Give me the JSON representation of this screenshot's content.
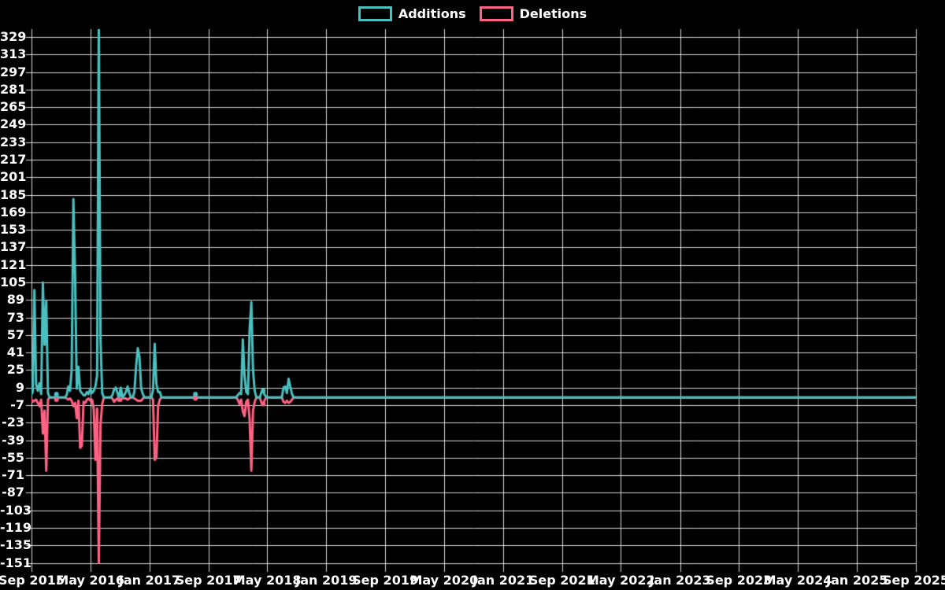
{
  "background_color": "#000000",
  "legend": {
    "items": [
      {
        "label": "Additions",
        "color": "#4bc0c0"
      },
      {
        "label": "Deletions",
        "color": "#ff6384"
      }
    ]
  },
  "chart_data": {
    "type": "line",
    "title": "",
    "xlabel": "",
    "ylabel": "",
    "grid": true,
    "legend_position": "top",
    "x_axis": {
      "tick_labels": [
        "Sep 2015",
        "May 2016",
        "Jan 2017",
        "Sep 2017",
        "May 2018",
        "Jan 2019",
        "Sep 2019",
        "May 2020",
        "Jan 2021",
        "Sep 2021",
        "May 2022",
        "Jan 2023",
        "Sep 2023",
        "May 2024",
        "Jan 2025",
        "Sep 2025"
      ]
    },
    "y_axis": {
      "min": -151,
      "max": 329,
      "tick_step": 16,
      "tick_labels": [
        "329",
        "313",
        "297",
        "281",
        "265",
        "249",
        "233",
        "217",
        "201",
        "185",
        "169",
        "153",
        "137",
        "121",
        "105",
        "89",
        "73",
        "57",
        "41",
        "25",
        "9",
        "-7",
        "-23",
        "-39",
        "-55",
        "-71",
        "-87",
        "-103",
        "-119",
        "-135",
        "-151"
      ]
    },
    "series": [
      {
        "name": "Additions",
        "color": "#4bc0c0"
      },
      {
        "name": "Deletions",
        "color": "#ff6384"
      }
    ],
    "weeks_start": "2015-08-30",
    "weeks_end": "2025-08-31",
    "default_value": 0,
    "weekly_points_format": [
      "week_date",
      "additions",
      "deletions"
    ],
    "weekly_points": [
      [
        "2015-08-30",
        2,
        -1
      ],
      [
        "2015-09-06",
        5,
        -4
      ],
      [
        "2015-09-13",
        98,
        -3
      ],
      [
        "2015-09-20",
        12,
        -2
      ],
      [
        "2015-09-27",
        6,
        -5
      ],
      [
        "2015-10-04",
        13,
        -8
      ],
      [
        "2015-10-11",
        3,
        -2
      ],
      [
        "2015-10-18",
        105,
        -33
      ],
      [
        "2015-10-25",
        48,
        -12
      ],
      [
        "2015-11-01",
        88,
        -67
      ],
      [
        "2015-11-08",
        4,
        -2
      ],
      [
        "2015-12-13",
        3,
        -2
      ],
      [
        "2016-01-24",
        2,
        -1
      ],
      [
        "2016-01-31",
        10,
        -2
      ],
      [
        "2016-02-07",
        6,
        -1
      ],
      [
        "2016-02-14",
        25,
        -3
      ],
      [
        "2016-02-21",
        181,
        -8
      ],
      [
        "2016-02-28",
        112,
        -5
      ],
      [
        "2016-03-06",
        8,
        -19
      ],
      [
        "2016-03-13",
        28,
        -3
      ],
      [
        "2016-03-20",
        6,
        -46
      ],
      [
        "2016-03-27",
        4,
        -44
      ],
      [
        "2016-04-03",
        2,
        -4
      ],
      [
        "2016-04-10",
        2,
        -5
      ],
      [
        "2016-04-17",
        5,
        -2
      ],
      [
        "2016-04-24",
        3,
        -1
      ],
      [
        "2016-05-01",
        8,
        -3
      ],
      [
        "2016-05-08",
        4,
        -2
      ],
      [
        "2016-05-15",
        6,
        -10
      ],
      [
        "2016-05-22",
        10,
        -57
      ],
      [
        "2016-05-29",
        20,
        -10
      ],
      [
        "2016-06-05",
        345,
        -151
      ],
      [
        "2016-06-12",
        53,
        -25
      ],
      [
        "2016-06-19",
        4,
        -6
      ],
      [
        "2016-07-31",
        2,
        -1
      ],
      [
        "2016-08-07",
        7,
        -4
      ],
      [
        "2016-08-14",
        9,
        -2
      ],
      [
        "2016-08-21",
        4,
        -1
      ],
      [
        "2016-08-28",
        2,
        -2
      ],
      [
        "2016-09-04",
        9,
        -3
      ],
      [
        "2016-09-18",
        2,
        -1
      ],
      [
        "2016-09-25",
        5,
        -1
      ],
      [
        "2016-10-02",
        10,
        -2
      ],
      [
        "2016-10-09",
        4,
        -1
      ],
      [
        "2016-10-30",
        5,
        -1
      ],
      [
        "2016-11-06",
        28,
        -2
      ],
      [
        "2016-11-13",
        45,
        -3
      ],
      [
        "2016-11-20",
        37,
        -3
      ],
      [
        "2016-11-27",
        8,
        -3
      ],
      [
        "2016-12-04",
        3,
        -1
      ],
      [
        "2017-01-15",
        7,
        -2
      ],
      [
        "2017-01-22",
        49,
        -57
      ],
      [
        "2017-01-29",
        12,
        -55
      ],
      [
        "2017-02-05",
        5,
        -8
      ],
      [
        "2017-02-12",
        5,
        -2
      ],
      [
        "2017-07-09",
        3,
        -1
      ],
      [
        "2017-12-31",
        2,
        -2
      ],
      [
        "2018-01-07",
        4,
        -6
      ],
      [
        "2018-01-14",
        3,
        -2
      ],
      [
        "2018-01-21",
        53,
        -13
      ],
      [
        "2018-01-28",
        20,
        -17
      ],
      [
        "2018-02-04",
        5,
        -4
      ],
      [
        "2018-02-11",
        3,
        -2
      ],
      [
        "2018-02-18",
        62,
        -20
      ],
      [
        "2018-02-25",
        87,
        -67
      ],
      [
        "2018-03-04",
        25,
        -12
      ],
      [
        "2018-03-11",
        6,
        -4
      ],
      [
        "2018-04-08",
        5,
        -5
      ],
      [
        "2018-04-15",
        6,
        -6
      ],
      [
        "2018-04-22",
        2,
        -2
      ],
      [
        "2018-07-08",
        9,
        -4
      ],
      [
        "2018-07-15",
        10,
        -5
      ],
      [
        "2018-07-22",
        4,
        -3
      ],
      [
        "2018-07-29",
        17,
        -5
      ],
      [
        "2018-08-05",
        10,
        -4
      ],
      [
        "2018-08-12",
        3,
        -2
      ]
    ],
    "isolated_dots": [
      [
        "2015-12-13",
        3,
        -2
      ],
      [
        "2016-08-28",
        2,
        -2
      ],
      [
        "2017-07-09",
        3,
        -1
      ],
      [
        "2018-04-15",
        6,
        -6
      ]
    ],
    "grid_color": "rgba(255,255,255,0.85)"
  }
}
